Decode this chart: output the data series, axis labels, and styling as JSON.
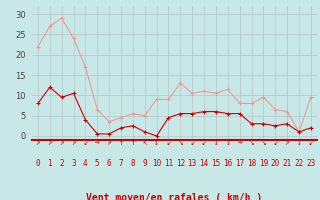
{
  "hours": [
    0,
    1,
    2,
    3,
    4,
    5,
    6,
    7,
    8,
    9,
    10,
    11,
    12,
    13,
    14,
    15,
    16,
    17,
    18,
    19,
    20,
    21,
    22,
    23
  ],
  "wind_speed": [
    8,
    12,
    9.5,
    10.5,
    4,
    0.5,
    0.5,
    2,
    2.5,
    1,
    0,
    4.5,
    5.5,
    5.5,
    6,
    6,
    5.5,
    5.5,
    3,
    3,
    2.5,
    3,
    1,
    2
  ],
  "wind_gusts": [
    22,
    27,
    29,
    24,
    17,
    6.5,
    3.5,
    4.5,
    5.5,
    5,
    9,
    9,
    13,
    10.5,
    11,
    10.5,
    11.5,
    8,
    8,
    9.5,
    6.5,
    6,
    1,
    9.5
  ],
  "arrows": [
    "↗",
    "↗",
    "↗",
    "↗",
    "↙",
    "→",
    "↗",
    "↑",
    "↑",
    "↖",
    "↓",
    "↙",
    "↘",
    "↙",
    "↙",
    "↓",
    "↓",
    "→",
    "↘",
    "↘",
    "↙",
    "↗",
    "↓",
    "↙"
  ],
  "bg_color": "#c8e8e8",
  "grid_color": "#b0c8c8",
  "line_color_speed": "#cc0000",
  "line_color_gusts": "#ee9999",
  "xlabel": "Vent moyen/en rafales ( km/h )",
  "yticks": [
    0,
    5,
    10,
    15,
    20,
    25,
    30
  ],
  "ylim": [
    -1,
    32
  ],
  "xlim": [
    -0.5,
    23.5
  ],
  "tick_fontsize": 5.5,
  "ytick_fontsize": 6.0,
  "xlabel_fontsize": 7.0
}
